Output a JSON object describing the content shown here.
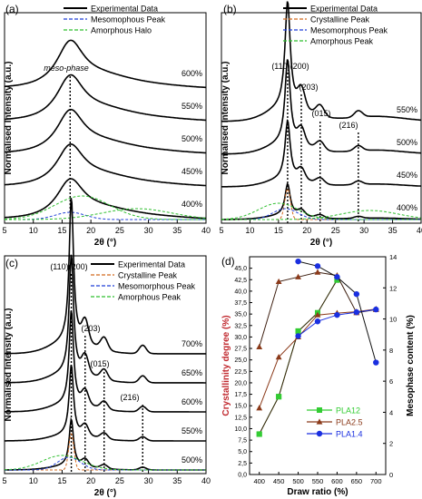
{
  "colors": {
    "experimental": "#000000",
    "crystalline": "#d2691e",
    "mesomorphous": "#1f3fd8",
    "amorphous": "#2fbf2f",
    "pla12": "#33cc33",
    "pla25": "#8b3a1a",
    "pla14": "#1a2fe0",
    "ylabel_left_d": "#c0282e"
  },
  "chart_data": [
    {
      "panel": "(a)",
      "type": "line",
      "xlabel": "2θ (°)",
      "ylabel": "Normalised Intensity (a.u.)",
      "xlim": [
        5,
        40
      ],
      "xticks": [
        5,
        10,
        15,
        20,
        25,
        30,
        35,
        40
      ],
      "legend": [
        "Experimental Data",
        "Mesomophous Peak",
        "Amorphous Halo"
      ],
      "legend_position": "top-right",
      "annotations": [
        "meso-phase"
      ],
      "marker_lines_2theta": [
        16.4
      ],
      "series": [
        {
          "name": "400%",
          "peak_2theta": 16.4,
          "fwhm": 6
        },
        {
          "name": "450%",
          "peak_2theta": 16.4,
          "fwhm": 6
        },
        {
          "name": "500%",
          "peak_2theta": 16.4,
          "fwhm": 6
        },
        {
          "name": "550%",
          "peak_2theta": 16.4,
          "fwhm": 6
        },
        {
          "name": "600%",
          "peak_2theta": 16.4,
          "fwhm": 6
        }
      ]
    },
    {
      "panel": "(b)",
      "type": "line",
      "xlabel": "2θ (°)",
      "ylabel": "Normalised Intensity (a.u.)",
      "xlim": [
        5,
        40
      ],
      "xticks": [
        5,
        10,
        15,
        20,
        25,
        30,
        35,
        40
      ],
      "legend": [
        "Experimental Data",
        "Crystalline Peak",
        "Mesomorphous Peak",
        "Amorphous Peak"
      ],
      "legend_position": "top-right",
      "annotations": [
        "(110)(200)",
        "(203)",
        "(015)",
        "(216)"
      ],
      "marker_lines_2theta": [
        16.6,
        19.0,
        22.3,
        29.0
      ],
      "series": [
        {
          "name": "400%"
        },
        {
          "name": "450%"
        },
        {
          "name": "500%"
        },
        {
          "name": "550%"
        }
      ]
    },
    {
      "panel": "(c)",
      "type": "line",
      "xlabel": "2θ (°)",
      "ylabel": "Normalised Intensity (a.u.)",
      "xlim": [
        5,
        40
      ],
      "xticks": [
        5,
        10,
        15,
        20,
        25,
        30,
        35,
        40
      ],
      "legend": [
        "Experimental Data",
        "Crystalline Peak",
        "Mesomorphous Peak",
        "Amorphous Peak"
      ],
      "legend_position": "top-right",
      "annotations": [
        "(110)(200)",
        "(203)",
        "(015)",
        "(216)"
      ],
      "marker_lines_2theta": [
        16.6,
        19.0,
        22.3,
        29.0
      ],
      "series": [
        {
          "name": "500%"
        },
        {
          "name": "550%"
        },
        {
          "name": "600%"
        },
        {
          "name": "650%"
        },
        {
          "name": "700%"
        }
      ]
    },
    {
      "panel": "(d)",
      "type": "line",
      "xlabel": "Draw ratio (%)",
      "ylabel_left": "Crystallinity degree (%)",
      "ylabel_right": "Mesophase content (%)",
      "xlim": [
        375,
        725
      ],
      "xticks": [
        400,
        450,
        500,
        550,
        600,
        650,
        700
      ],
      "ylim_left": [
        0,
        47.5
      ],
      "yticks_left": [
        "0,0",
        "2,5",
        "5,0",
        "7,5",
        "10,0",
        "12,5",
        "15,0",
        "17,5",
        "20,0",
        "22,5",
        "25,0",
        "27,5",
        "30,0",
        "32,5",
        "35,0",
        "37,5",
        "40,0",
        "42,5",
        "45,0"
      ],
      "ylim_right": [
        0,
        14
      ],
      "yticks_right": [
        "0",
        "2",
        "4",
        "6",
        "8",
        "10",
        "12",
        "14"
      ],
      "legend_position": "center-right",
      "series": [
        {
          "name": "PLA12",
          "marker": "square",
          "x": [
            400,
            450,
            500,
            550,
            600
          ],
          "crystallinity": [
            8.8,
            17,
            31.3,
            35.2,
            42.5
          ],
          "mesophase": [
            2.6,
            5.0,
            9.2,
            10.4,
            12.5
          ]
        },
        {
          "name": "PLA2.5",
          "marker": "triangle",
          "x": [
            400,
            450,
            500,
            550,
            600,
            650,
            700
          ],
          "crystallinity": [
            14.5,
            25.6,
            30.0,
            34.8,
            35.2,
            35.5,
            36.1
          ],
          "mesophase": [
            8.2,
            12.4,
            12.7,
            13.0,
            12.8,
            10.4,
            10.6
          ]
        },
        {
          "name": "PLA1.4",
          "marker": "circle",
          "x": [
            500,
            550,
            600,
            650,
            700
          ],
          "crystallinity": [
            30.2,
            33.4,
            34.8,
            35.4,
            36.0
          ],
          "mesophase": [
            13.7,
            13.4,
            12.7,
            11.6,
            7.2
          ]
        }
      ]
    }
  ]
}
